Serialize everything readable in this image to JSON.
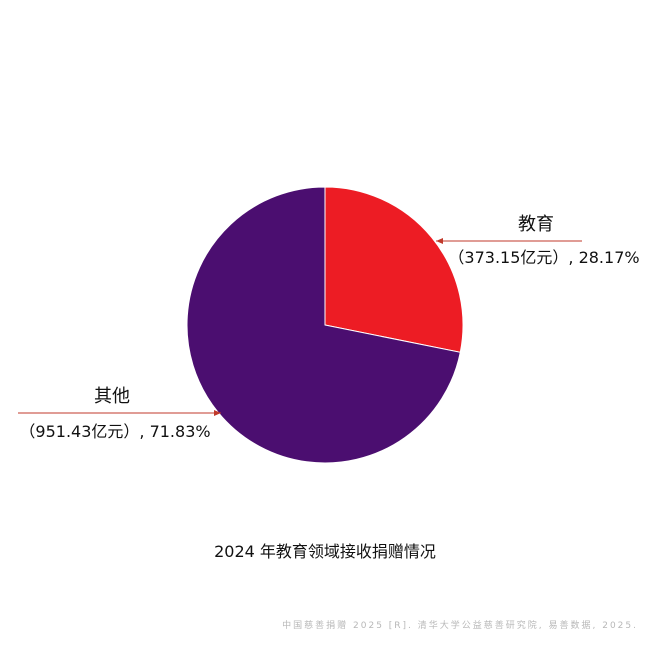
{
  "chart_data": {
    "type": "pie",
    "title": "2024 年教育领域接收捐赠情况",
    "source": "中国慈善捐赠 2025 [R]. 清华大学公益慈善研究院, 易善数据, 2025.",
    "unit": "亿元",
    "slices": [
      {
        "name": "教育",
        "value": 373.15,
        "percent": 28.17,
        "value_text": "（373.15亿元）, 28.17%",
        "color": "#ed1c24"
      },
      {
        "name": "其他",
        "value": 951.43,
        "percent": 71.83,
        "value_text": "（951.43亿元）, 71.83%",
        "color": "#4b0e70"
      }
    ],
    "label_line_color": "#c0392b"
  }
}
